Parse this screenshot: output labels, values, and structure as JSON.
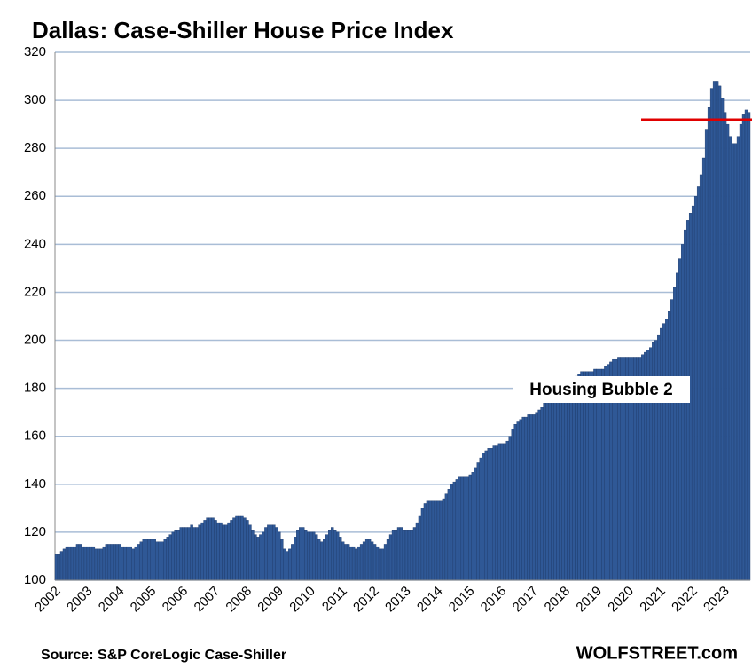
{
  "chart_data": {
    "type": "bar",
    "title": "Dallas: Case-Shiller House Price Index",
    "source": "Source: S&P CoreLogic Case-Shiller",
    "brand": "WOLFSTREET.com",
    "annotation": {
      "text": "Housing Bubble 2",
      "color": "#e00000"
    },
    "hline": {
      "value": 292,
      "color": "#e00000"
    },
    "color": "#2f5896",
    "grid": true,
    "ylim": [
      100,
      320
    ],
    "yticks": [
      100,
      120,
      140,
      160,
      180,
      200,
      220,
      240,
      260,
      280,
      300,
      320
    ],
    "categories": [
      "2002",
      null,
      null,
      null,
      null,
      null,
      null,
      null,
      null,
      null,
      null,
      null,
      "2003",
      null,
      null,
      null,
      null,
      null,
      null,
      null,
      null,
      null,
      null,
      null,
      "2004",
      null,
      null,
      null,
      null,
      null,
      null,
      null,
      null,
      null,
      null,
      null,
      "2005",
      null,
      null,
      null,
      null,
      null,
      null,
      null,
      null,
      null,
      null,
      null,
      "2006",
      null,
      null,
      null,
      null,
      null,
      null,
      null,
      null,
      null,
      null,
      null,
      "2007",
      null,
      null,
      null,
      null,
      null,
      null,
      null,
      null,
      null,
      null,
      null,
      "2008",
      null,
      null,
      null,
      null,
      null,
      null,
      null,
      null,
      null,
      null,
      null,
      "2009",
      null,
      null,
      null,
      null,
      null,
      null,
      null,
      null,
      null,
      null,
      null,
      "2010",
      null,
      null,
      null,
      null,
      null,
      null,
      null,
      null,
      null,
      null,
      null,
      "2011",
      null,
      null,
      null,
      null,
      null,
      null,
      null,
      null,
      null,
      null,
      null,
      "2012",
      null,
      null,
      null,
      null,
      null,
      null,
      null,
      null,
      null,
      null,
      null,
      "2013",
      null,
      null,
      null,
      null,
      null,
      null,
      null,
      null,
      null,
      null,
      null,
      "2014",
      null,
      null,
      null,
      null,
      null,
      null,
      null,
      null,
      null,
      null,
      null,
      "2015",
      null,
      null,
      null,
      null,
      null,
      null,
      null,
      null,
      null,
      null,
      null,
      "2016",
      null,
      null,
      null,
      null,
      null,
      null,
      null,
      null,
      null,
      null,
      null,
      "2017",
      null,
      null,
      null,
      null,
      null,
      null,
      null,
      null,
      null,
      null,
      null,
      "2018",
      null,
      null,
      null,
      null,
      null,
      null,
      null,
      null,
      null,
      null,
      null,
      "2019",
      null,
      null,
      null,
      null,
      null,
      null,
      null,
      null,
      null,
      null,
      null,
      "2020",
      null,
      null,
      null,
      null,
      null,
      null,
      null,
      null,
      null,
      null,
      null,
      "2021",
      null,
      null,
      null,
      null,
      null,
      null,
      null,
      null,
      null,
      null,
      null,
      "2022",
      null,
      null,
      null,
      null,
      null,
      null,
      null,
      null,
      null,
      null,
      null,
      "2023",
      null,
      null,
      null,
      null,
      null,
      null,
      null,
      null,
      null
    ],
    "values": [
      111,
      111,
      112,
      113,
      114,
      114,
      114,
      114,
      115,
      115,
      114,
      114,
      114,
      114,
      114,
      113,
      113,
      113,
      114,
      115,
      115,
      115,
      115,
      115,
      115,
      114,
      114,
      114,
      114,
      113,
      114,
      115,
      116,
      117,
      117,
      117,
      117,
      117,
      116,
      116,
      116,
      117,
      118,
      119,
      120,
      121,
      121,
      122,
      122,
      122,
      122,
      123,
      122,
      122,
      123,
      124,
      125,
      126,
      126,
      126,
      125,
      124,
      124,
      123,
      123,
      124,
      125,
      126,
      127,
      127,
      127,
      126,
      125,
      123,
      121,
      119,
      118,
      119,
      120,
      122,
      123,
      123,
      123,
      122,
      120,
      117,
      113,
      112,
      113,
      115,
      118,
      121,
      122,
      122,
      121,
      120,
      120,
      120,
      119,
      117,
      116,
      117,
      119,
      121,
      122,
      121,
      120,
      118,
      116,
      115,
      115,
      114,
      114,
      113,
      114,
      115,
      116,
      117,
      117,
      116,
      115,
      114,
      113,
      113,
      115,
      117,
      119,
      121,
      121,
      122,
      122,
      121,
      121,
      121,
      121,
      122,
      124,
      127,
      130,
      132,
      133,
      133,
      133,
      133,
      133,
      133,
      134,
      136,
      138,
      140,
      141,
      142,
      143,
      143,
      143,
      143,
      144,
      145,
      147,
      149,
      151,
      153,
      154,
      155,
      155,
      156,
      156,
      157,
      157,
      157,
      158,
      160,
      163,
      165,
      166,
      167,
      168,
      168,
      169,
      169,
      169,
      170,
      171,
      172,
      174,
      175,
      176,
      177,
      178,
      179,
      179,
      180,
      180,
      181,
      182,
      183,
      185,
      186,
      187,
      187,
      187,
      187,
      187,
      188,
      188,
      188,
      188,
      189,
      190,
      191,
      192,
      192,
      193,
      193,
      193,
      193,
      193,
      193,
      193,
      193,
      193,
      194,
      195,
      196,
      197,
      199,
      200,
      202,
      205,
      207,
      209,
      212,
      217,
      222,
      228,
      234,
      240,
      246,
      250,
      253,
      256,
      260,
      264,
      269,
      276,
      288,
      297,
      305,
      308,
      308,
      306,
      301,
      295,
      290,
      285,
      282,
      282,
      285,
      290,
      294,
      296,
      295
    ]
  }
}
